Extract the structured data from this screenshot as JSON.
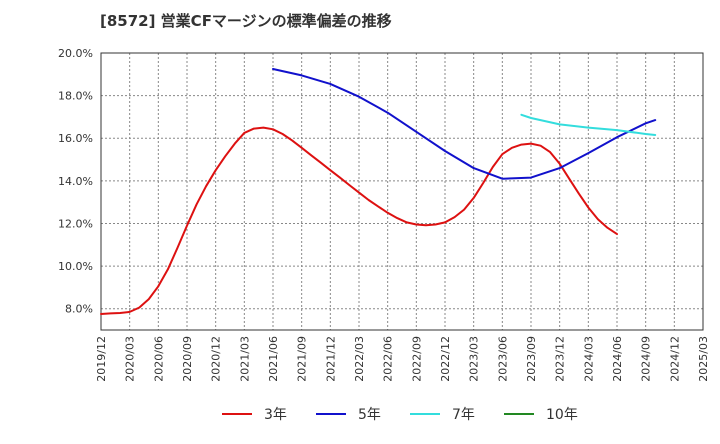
{
  "chart_data": {
    "type": "line",
    "title": "[8572]  営業CFマージンの標準偏差の推移",
    "xlabel": "",
    "ylabel": "",
    "ylim": [
      7.0,
      20.0
    ],
    "y_ticks": [
      8.0,
      10.0,
      12.0,
      14.0,
      16.0,
      18.0,
      20.0
    ],
    "y_tick_labels": [
      "8.0%",
      "10.0%",
      "12.0%",
      "14.0%",
      "16.0%",
      "18.0%",
      "20.0%"
    ],
    "x_ticks": [
      "2019/12",
      "2020/03",
      "2020/06",
      "2020/09",
      "2020/12",
      "2021/03",
      "2021/06",
      "2021/09",
      "2021/12",
      "2022/03",
      "2022/06",
      "2022/09",
      "2022/12",
      "2023/03",
      "2023/06",
      "2023/09",
      "2023/12",
      "2024/03",
      "2024/06",
      "2024/09",
      "2024/12",
      "2025/03"
    ],
    "grid": true,
    "legend_position": "bottom",
    "series": [
      {
        "name": "3年",
        "color": "#dd1111",
        "points": [
          [
            "2019/12",
            7.75
          ],
          [
            "2020/01",
            7.78
          ],
          [
            "2020/02",
            7.8
          ],
          [
            "2020/03",
            7.85
          ],
          [
            "2020/04",
            8.05
          ],
          [
            "2020/05",
            8.45
          ],
          [
            "2020/06",
            9.05
          ],
          [
            "2020/07",
            9.85
          ],
          [
            "2020/08",
            10.85
          ],
          [
            "2020/09",
            11.9
          ],
          [
            "2020/10",
            12.9
          ],
          [
            "2020/11",
            13.75
          ],
          [
            "2020/12",
            14.5
          ],
          [
            "2021/01",
            15.15
          ],
          [
            "2021/02",
            15.75
          ],
          [
            "2021/03",
            16.25
          ],
          [
            "2021/04",
            16.45
          ],
          [
            "2021/05",
            16.5
          ],
          [
            "2021/06",
            16.42
          ],
          [
            "2021/07",
            16.2
          ],
          [
            "2021/08",
            15.9
          ],
          [
            "2021/09",
            15.55
          ],
          [
            "2021/10",
            15.2
          ],
          [
            "2021/11",
            14.85
          ],
          [
            "2021/12",
            14.5
          ],
          [
            "2022/01",
            14.15
          ],
          [
            "2022/02",
            13.8
          ],
          [
            "2022/03",
            13.45
          ],
          [
            "2022/04",
            13.1
          ],
          [
            "2022/05",
            12.8
          ],
          [
            "2022/06",
            12.5
          ],
          [
            "2022/07",
            12.25
          ],
          [
            "2022/08",
            12.05
          ],
          [
            "2022/09",
            11.95
          ],
          [
            "2022/10",
            11.92
          ],
          [
            "2022/11",
            11.95
          ],
          [
            "2022/12",
            12.05
          ],
          [
            "2023/01",
            12.3
          ],
          [
            "2023/02",
            12.65
          ],
          [
            "2023/03",
            13.2
          ],
          [
            "2023/04",
            13.9
          ],
          [
            "2023/05",
            14.65
          ],
          [
            "2023/06",
            15.25
          ],
          [
            "2023/07",
            15.55
          ],
          [
            "2023/08",
            15.7
          ],
          [
            "2023/09",
            15.75
          ],
          [
            "2023/10",
            15.65
          ],
          [
            "2023/11",
            15.35
          ],
          [
            "2023/12",
            14.8
          ],
          [
            "2024/01",
            14.1
          ],
          [
            "2024/02",
            13.4
          ],
          [
            "2024/03",
            12.75
          ],
          [
            "2024/04",
            12.2
          ],
          [
            "2024/05",
            11.8
          ],
          [
            "2024/06",
            11.5
          ]
        ]
      },
      {
        "name": "5年",
        "color": "#1111cc",
        "points": [
          [
            "2021/06",
            19.25
          ],
          [
            "2021/09",
            18.95
          ],
          [
            "2021/12",
            18.55
          ],
          [
            "2022/03",
            17.95
          ],
          [
            "2022/06",
            17.2
          ],
          [
            "2022/09",
            16.3
          ],
          [
            "2022/12",
            15.4
          ],
          [
            "2023/03",
            14.6
          ],
          [
            "2023/06",
            14.1
          ],
          [
            "2023/09",
            14.15
          ],
          [
            "2023/12",
            14.6
          ],
          [
            "2024/03",
            15.3
          ],
          [
            "2024/06",
            16.05
          ],
          [
            "2024/09",
            16.7
          ],
          [
            "2024/10",
            16.85
          ]
        ]
      },
      {
        "name": "7年",
        "color": "#33dddd",
        "points": [
          [
            "2023/08",
            17.1
          ],
          [
            "2023/09",
            16.95
          ],
          [
            "2023/12",
            16.65
          ],
          [
            "2024/03",
            16.5
          ],
          [
            "2024/06",
            16.38
          ],
          [
            "2024/09",
            16.2
          ],
          [
            "2024/10",
            16.15
          ]
        ]
      },
      {
        "name": "10年",
        "color": "#228822",
        "points": []
      }
    ]
  }
}
